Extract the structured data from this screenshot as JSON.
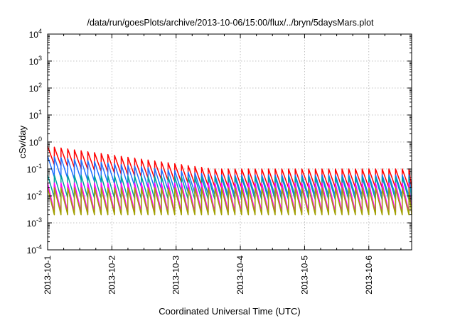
{
  "chart_data": {
    "type": "line",
    "title": "/data/run/goesPlots/archive/2013-10-06/15:00/flux/../bryn/5daysMars.plot",
    "xlabel": "Coordinated Universal Time (UTC)",
    "ylabel": "cSv/day",
    "yscale": "log",
    "ylim": [
      0.0001,
      10000
    ],
    "xlim": [
      "2013-10-01",
      "2013-10-06T16:00"
    ],
    "grid": true,
    "legend": "none",
    "y_ticks": [
      {
        "exp": -4,
        "base": "10",
        "sup": "-4"
      },
      {
        "exp": -3,
        "base": "10",
        "sup": "-3"
      },
      {
        "exp": -2,
        "base": "10",
        "sup": "-2"
      },
      {
        "exp": -1,
        "base": "10",
        "sup": "-1"
      },
      {
        "exp": 0,
        "base": "10",
        "sup": "0"
      },
      {
        "exp": 1,
        "base": "10",
        "sup": "1"
      },
      {
        "exp": 2,
        "base": "10",
        "sup": "2"
      },
      {
        "exp": 3,
        "base": "10",
        "sup": "3"
      },
      {
        "exp": 4,
        "base": "10",
        "sup": "4"
      }
    ],
    "x_ticks": [
      "2013-10-1",
      "2013-10-2",
      "2013-10-3",
      "2013-10-4",
      "2013-10-5",
      "2013-10-6"
    ],
    "sawtooth_period_hours": 2.5,
    "series": [
      {
        "color": "#ff0000",
        "start_time": "2013-10-01T00:00",
        "peak_start": 0.7,
        "peak_end": 0.1,
        "ratio": 5
      },
      {
        "color": "#1e6fff",
        "start_time": "2013-10-01T00:00",
        "peak_start": 0.3,
        "peak_end": 0.06,
        "ratio": 6
      },
      {
        "color": "#00a0a0",
        "start_time": "2013-10-01T00:00",
        "peak_start": 0.06,
        "peak_end": 0.05,
        "ratio": 7
      },
      {
        "color": "#ff00ff",
        "start_time": "2013-10-01T00:00",
        "peak_start": 0.03,
        "peak_end": 0.03,
        "ratio": 12
      },
      {
        "color": "#a0a000",
        "start_time": "2013-10-01T00:00",
        "peak_start": 0.02,
        "peak_end": 0.02,
        "ratio": 10
      }
    ]
  }
}
